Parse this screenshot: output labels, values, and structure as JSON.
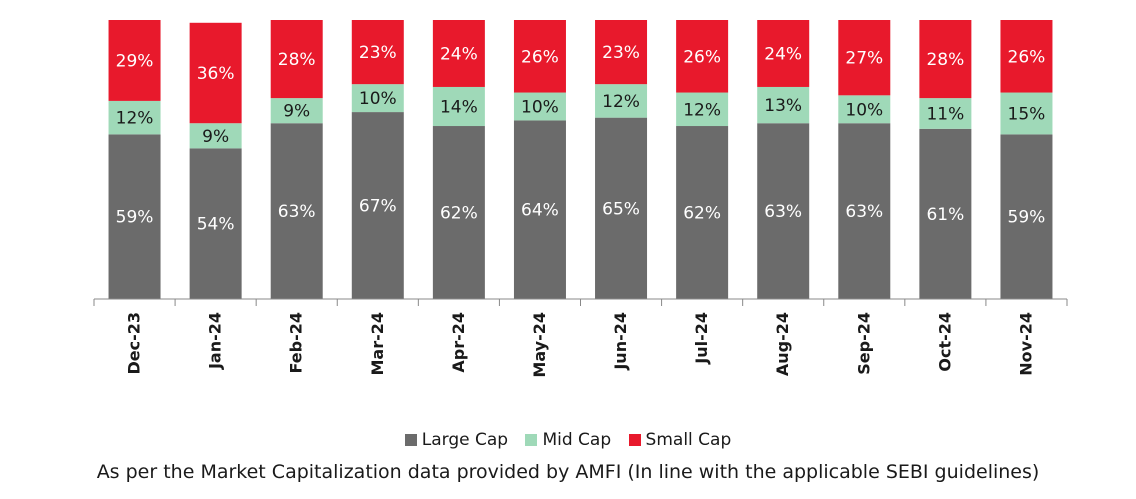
{
  "colors": {
    "large_cap": "#6b6b6b",
    "mid_cap": "#9fd9b8",
    "small_cap": "#e8192c",
    "axis": "#888888"
  },
  "legend": {
    "large_cap": "Large Cap",
    "mid_cap": "Mid Cap",
    "small_cap": "Small Cap"
  },
  "footnote": "As per the Market Capitalization data provided by AMFI (In line with the applicable SEBI guidelines)",
  "chart_data": {
    "type": "bar",
    "stacked": true,
    "categories": [
      "Dec-23",
      "Jan-24",
      "Feb-24",
      "Mar-24",
      "Apr-24",
      "May-24",
      "Jun-24",
      "Jul-24",
      "Aug-24",
      "Sep-24",
      "Oct-24",
      "Nov-24"
    ],
    "series": [
      {
        "name": "Large Cap",
        "values": [
          59,
          54,
          63,
          67,
          62,
          64,
          65,
          62,
          63,
          63,
          61,
          59
        ],
        "labels": [
          "59%",
          "54%",
          "63%",
          "67%",
          "62%",
          "64%",
          "65%",
          "62%",
          "63%",
          "63%",
          "61%",
          "59%"
        ]
      },
      {
        "name": "Mid Cap",
        "values": [
          12,
          9,
          9,
          10,
          14,
          10,
          12,
          12,
          13,
          10,
          11,
          15
        ],
        "labels": [
          "12%",
          "9%",
          "9%",
          "10%",
          "14%",
          "10%",
          "12%",
          "12%",
          "13%",
          "10%",
          "11%",
          "15%"
        ]
      },
      {
        "name": "Small Cap",
        "values": [
          29,
          36,
          28,
          23,
          24,
          26,
          23,
          26,
          24,
          27,
          28,
          26
        ],
        "labels": [
          "29%",
          "36%",
          "28%",
          "23%",
          "24%",
          "26%",
          "23%",
          "26%",
          "24%",
          "27%",
          "28%",
          "26%"
        ]
      }
    ],
    "ylim": [
      0,
      100
    ],
    "legend_position": "bottom",
    "grid": false
  }
}
